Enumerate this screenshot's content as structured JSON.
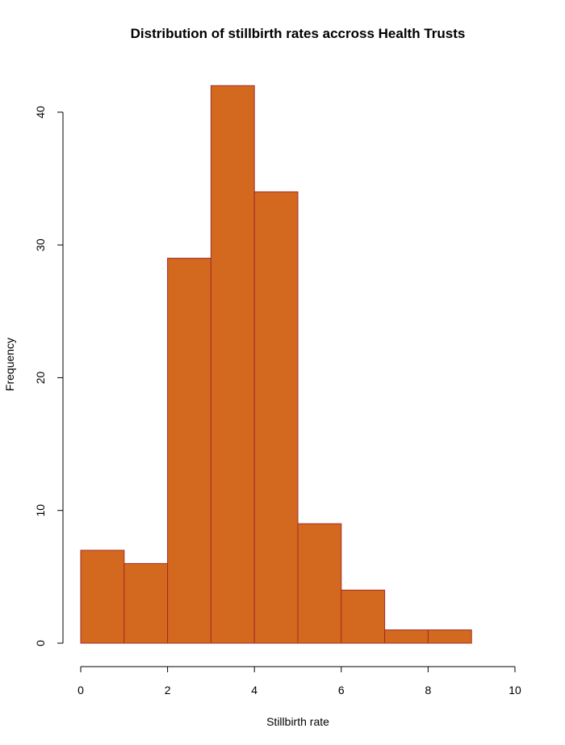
{
  "chart_data": {
    "type": "bar",
    "subtype": "histogram",
    "title": "Distribution of stillbirth rates accross Health Trusts",
    "xlabel": "Stillbirth rate",
    "ylabel": "Frequency",
    "bins": [
      {
        "x0": 0,
        "x1": 1,
        "count": 7
      },
      {
        "x0": 1,
        "x1": 2,
        "count": 6
      },
      {
        "x0": 2,
        "x1": 3,
        "count": 29
      },
      {
        "x0": 3,
        "x1": 4,
        "count": 42
      },
      {
        "x0": 4,
        "x1": 5,
        "count": 34
      },
      {
        "x0": 5,
        "x1": 6,
        "count": 9
      },
      {
        "x0": 6,
        "x1": 7,
        "count": 4
      },
      {
        "x0": 7,
        "x1": 8,
        "count": 1
      },
      {
        "x0": 8,
        "x1": 9,
        "count": 1
      }
    ],
    "xlim": [
      0,
      10
    ],
    "ylim": [
      0,
      42
    ],
    "x_ticks": [
      "0",
      "2",
      "4",
      "6",
      "8",
      "10"
    ],
    "y_ticks": [
      "0",
      "10",
      "20",
      "30",
      "40"
    ],
    "grid": false,
    "legend": "none",
    "colors": {
      "bar_fill": "#d2691e",
      "bar_stroke": "#a52a2a"
    }
  }
}
